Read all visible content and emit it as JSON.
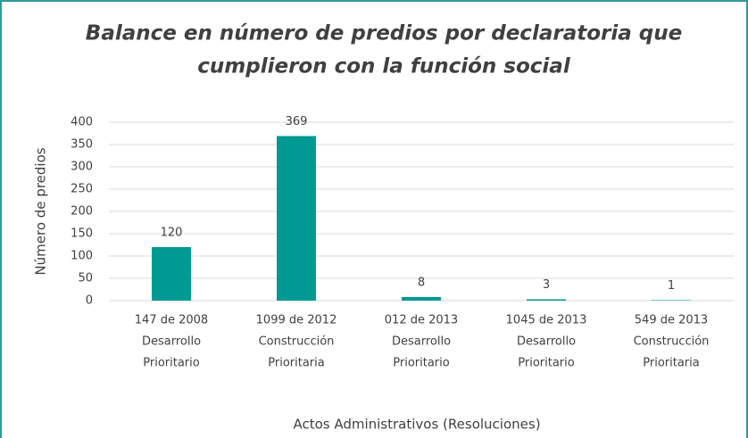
{
  "chart_data": {
    "type": "bar",
    "title": [
      "Balance en número de predios por declaratoria que",
      "cumplieron con la función social"
    ],
    "categories": [
      [
        "147 de 2008",
        "Desarrollo",
        "Prioritario"
      ],
      [
        "1099 de 2012",
        "Construcción",
        "Prioritaria"
      ],
      [
        "012 de 2013",
        "Desarrollo",
        "Prioritario"
      ],
      [
        "1045 de 2013",
        "Desarrollo",
        "Prioritario"
      ],
      [
        "549 de 2013",
        "Construcción",
        "Prioritaria"
      ]
    ],
    "values": [
      120,
      369,
      8,
      3,
      1
    ],
    "color": "#009a93",
    "ylim": [
      0,
      400
    ],
    "yticks": [
      0,
      50,
      100,
      150,
      200,
      250,
      300,
      350,
      400
    ],
    "grid": true,
    "y_label": "Número de predios",
    "x_label": "Actos Administrativos (Resoluciones)"
  }
}
